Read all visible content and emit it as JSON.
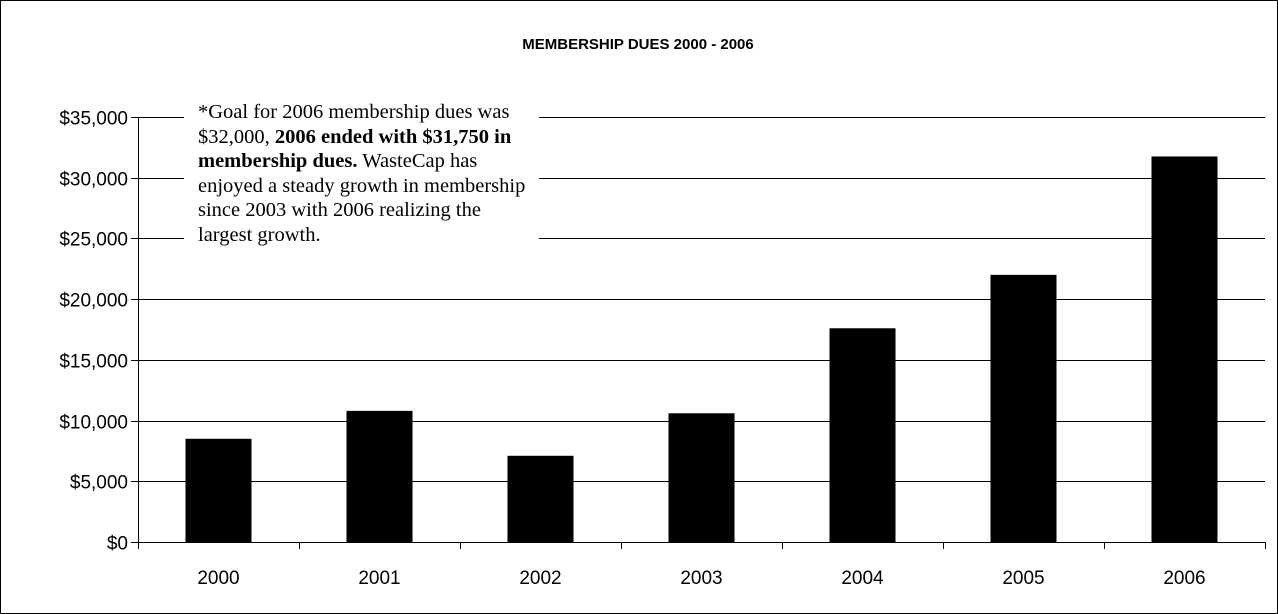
{
  "chart_data": {
    "type": "bar",
    "title": "MEMBERSHIP DUES 2000 - 2006",
    "categories": [
      "2000",
      "2001",
      "2002",
      "2003",
      "2004",
      "2005",
      "2006"
    ],
    "values": [
      8500,
      10800,
      7100,
      10600,
      17600,
      22000,
      31750
    ],
    "ylim": [
      0,
      35000
    ],
    "yticks": [
      0,
      5000,
      10000,
      15000,
      20000,
      25000,
      30000,
      35000
    ],
    "ytick_labels": [
      "$0",
      "$5,000",
      "$10,000",
      "$15,000",
      "$20,000",
      "$25,000",
      "$30,000",
      "$35,000"
    ],
    "grid": true,
    "legend": "none",
    "bar_color": "#000000",
    "annotation": {
      "part1": "*Goal for 2006 membership dues was $32,000, ",
      "part2_bold": "2006 ended with $31,750 in membership dues.",
      "part3": "WasteCap has enjoyed a steady growth in membership since 2003 with 2006 realizing the largest growth."
    }
  }
}
